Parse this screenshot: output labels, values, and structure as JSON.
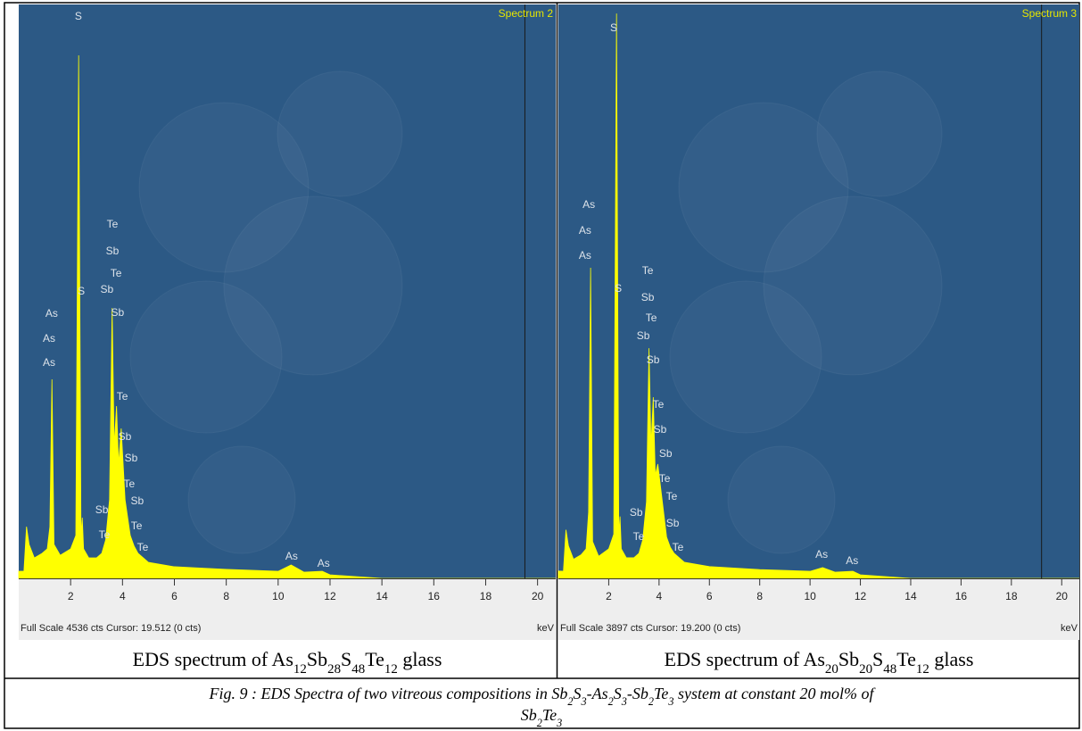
{
  "chart_data": [
    {
      "type": "area",
      "title": "Spectrum 2",
      "xlabel": "keV",
      "status": "Full Scale 4536 cts Cursor: 19.512 (0 cts)",
      "cursor": 19.512,
      "color": "#ffff00",
      "xlim": [
        0,
        20.7
      ],
      "ylim": [
        0,
        4536
      ],
      "xticks": [
        2,
        4,
        6,
        8,
        10,
        12,
        14,
        16,
        18,
        20
      ],
      "x": [
        0,
        0.2,
        0.3,
        0.4,
        0.6,
        0.9,
        1.1,
        1.2,
        1.28,
        1.36,
        1.6,
        2.0,
        2.2,
        2.31,
        2.4,
        2.45,
        2.5,
        2.7,
        3.0,
        3.2,
        3.35,
        3.5,
        3.6,
        3.68,
        3.77,
        3.85,
        3.95,
        4.1,
        4.3,
        4.45,
        4.6,
        5,
        6,
        8,
        10,
        10.5,
        11,
        11.7,
        12,
        13,
        14,
        20.7
      ],
      "values": [
        56,
        56,
        409,
        268,
        162,
        198,
        233,
        409,
        1573,
        268,
        183,
        233,
        339,
        4134,
        339,
        480,
        233,
        162,
        162,
        198,
        303,
        621,
        2137,
        1044,
        1361,
        903,
        1185,
        621,
        339,
        254,
        198,
        127,
        92,
        71,
        56,
        106,
        49,
        56,
        28,
        14,
        0,
        0
      ],
      "annotations": [
        {
          "text": "S",
          "x": 2.3,
          "y": 4416
        },
        {
          "text": "S",
          "x": 2.41,
          "y": 2243
        },
        {
          "text": "As",
          "x": 1.27,
          "y": 2067
        },
        {
          "text": "As",
          "x": 1.17,
          "y": 1869
        },
        {
          "text": "As",
          "x": 1.17,
          "y": 1679
        },
        {
          "text": "Te",
          "x": 3.61,
          "y": 2772
        },
        {
          "text": "Sb",
          "x": 3.61,
          "y": 2561
        },
        {
          "text": "Te",
          "x": 3.75,
          "y": 2384
        },
        {
          "text": "Sb",
          "x": 3.4,
          "y": 2257
        },
        {
          "text": "Sb",
          "x": 3.81,
          "y": 2074
        },
        {
          "text": "Te",
          "x": 3.99,
          "y": 1411
        },
        {
          "text": "Sb",
          "x": 4.09,
          "y": 1093
        },
        {
          "text": "Sb",
          "x": 4.33,
          "y": 924
        },
        {
          "text": "Te",
          "x": 4.26,
          "y": 720
        },
        {
          "text": "Sb",
          "x": 4.57,
          "y": 585
        },
        {
          "text": "Te",
          "x": 4.54,
          "y": 388
        },
        {
          "text": "Te",
          "x": 4.78,
          "y": 219
        },
        {
          "text": "Sb",
          "x": 3.2,
          "y": 515
        },
        {
          "text": "Te",
          "x": 3.3,
          "y": 317
        },
        {
          "text": "As",
          "x": 10.52,
          "y": 148
        },
        {
          "text": "As",
          "x": 11.75,
          "y": 92
        }
      ],
      "caption": [
        {
          "text": "EDS spectrum of As"
        },
        {
          "sub": "12"
        },
        {
          "text": "Sb"
        },
        {
          "sub": "28"
        },
        {
          "text": "S"
        },
        {
          "sub": "48"
        },
        {
          "text": "Te"
        },
        {
          "sub": "12"
        },
        {
          "text": " glass"
        }
      ]
    },
    {
      "type": "area",
      "title": "Spectrum 3",
      "xlabel": "keV",
      "status": "Full Scale 3897 cts Cursor: 19.200 (0 cts)",
      "cursor": 19.2,
      "color": "#ffff00",
      "xlim": [
        0,
        20.7
      ],
      "ylim": [
        0,
        3897
      ],
      "xticks": [
        2,
        4,
        6,
        8,
        10,
        12,
        14,
        16,
        18,
        20
      ],
      "x": [
        0,
        0.2,
        0.3,
        0.4,
        0.6,
        0.9,
        1.1,
        1.2,
        1.28,
        1.36,
        1.6,
        2.0,
        2.2,
        2.31,
        2.4,
        2.45,
        2.5,
        2.7,
        3.0,
        3.2,
        3.35,
        3.5,
        3.6,
        3.68,
        3.77,
        3.85,
        3.95,
        4.1,
        4.3,
        4.45,
        4.6,
        5,
        6,
        8,
        10,
        10.5,
        11,
        11.7,
        12,
        13,
        14,
        20.7
      ],
      "values": [
        50,
        48,
        330,
        220,
        130,
        160,
        200,
        450,
        2109,
        250,
        150,
        200,
        300,
        3836,
        300,
        420,
        200,
        140,
        140,
        170,
        260,
        520,
        1563,
        900,
        1230,
        700,
        776,
        565,
        280,
        210,
        170,
        110,
        80,
        60,
        48,
        73,
        42,
        48,
        24,
        12,
        0,
        0
      ],
      "annotations": [
        {
          "text": "S",
          "x": 2.2,
          "y": 3715
        },
        {
          "text": "S",
          "x": 2.38,
          "y": 1945
        },
        {
          "text": "As",
          "x": 1.21,
          "y": 2515
        },
        {
          "text": "As",
          "x": 1.06,
          "y": 2339
        },
        {
          "text": "As",
          "x": 1.06,
          "y": 2170
        },
        {
          "text": "Te",
          "x": 3.55,
          "y": 2066
        },
        {
          "text": "Sb",
          "x": 3.55,
          "y": 1884
        },
        {
          "text": "Te",
          "x": 3.69,
          "y": 1745
        },
        {
          "text": "Sb",
          "x": 3.37,
          "y": 1624
        },
        {
          "text": "Sb",
          "x": 3.76,
          "y": 1460
        },
        {
          "text": "Te",
          "x": 3.97,
          "y": 1157
        },
        {
          "text": "Sb",
          "x": 4.04,
          "y": 988
        },
        {
          "text": "Sb",
          "x": 4.26,
          "y": 824
        },
        {
          "text": "Te",
          "x": 4.22,
          "y": 654
        },
        {
          "text": "Te",
          "x": 4.5,
          "y": 533
        },
        {
          "text": "Sb",
          "x": 4.54,
          "y": 352
        },
        {
          "text": "Te",
          "x": 4.75,
          "y": 188
        },
        {
          "text": "Sb",
          "x": 3.09,
          "y": 424
        },
        {
          "text": "Te",
          "x": 3.19,
          "y": 261
        },
        {
          "text": "As",
          "x": 10.46,
          "y": 139
        },
        {
          "text": "As",
          "x": 11.67,
          "y": 97
        }
      ],
      "caption": [
        {
          "text": "EDS spectrum of As"
        },
        {
          "sub": "20"
        },
        {
          "text": "Sb"
        },
        {
          "sub": "20"
        },
        {
          "text": "S"
        },
        {
          "sub": "48"
        },
        {
          "text": "Te"
        },
        {
          "sub": "12"
        },
        {
          "text": " glass"
        }
      ]
    }
  ],
  "figure_caption": [
    [
      {
        "text": "Fig. 9 : EDS Spectra of two vitreous compositions in Sb"
      },
      {
        "sub": "2"
      },
      {
        "text": "S"
      },
      {
        "sub": "3"
      },
      {
        "text": "-As"
      },
      {
        "sub": "2"
      },
      {
        "text": "S"
      },
      {
        "sub": "3"
      },
      {
        "text": "-Sb"
      },
      {
        "sub": "2"
      },
      {
        "text": "Te"
      },
      {
        "sub": "3"
      },
      {
        "text": " system at constant 20 mol% of"
      }
    ],
    [
      {
        "text": "Sb"
      },
      {
        "sub": "2"
      },
      {
        "text": "Te"
      },
      {
        "sub": "3"
      }
    ]
  ]
}
